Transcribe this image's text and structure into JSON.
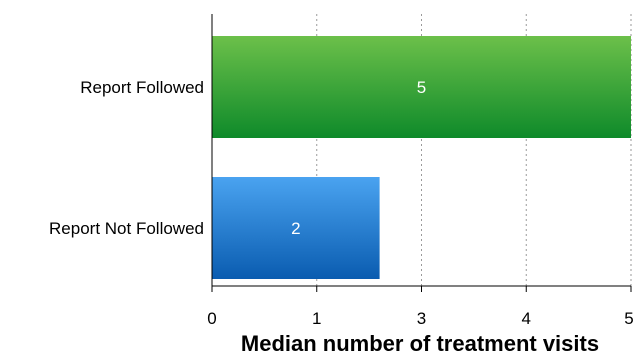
{
  "chart_data": {
    "type": "bar",
    "orientation": "horizontal",
    "categories": [
      "Report Followed",
      "Report Not Followed"
    ],
    "values": [
      5,
      2
    ],
    "data_labels": [
      "5",
      "2"
    ],
    "x_ticks": [
      {
        "label": "0",
        "pos": 0
      },
      {
        "label": "1",
        "pos": 1
      },
      {
        "label": "3",
        "pos": 2
      },
      {
        "label": "4",
        "pos": 3
      },
      {
        "label": "5",
        "pos": 4
      }
    ],
    "xlabel": "Median number of treatment visits",
    "ylabel": "",
    "title": "",
    "grid": "vertical-dotted",
    "legend": "none",
    "colors": {
      "Report Followed": {
        "top": "#6cc04a",
        "bottom": "#0e8a2a"
      },
      "Report Not Followed": {
        "top": "#4aa3f0",
        "bottom": "#0a5cb0"
      }
    }
  }
}
